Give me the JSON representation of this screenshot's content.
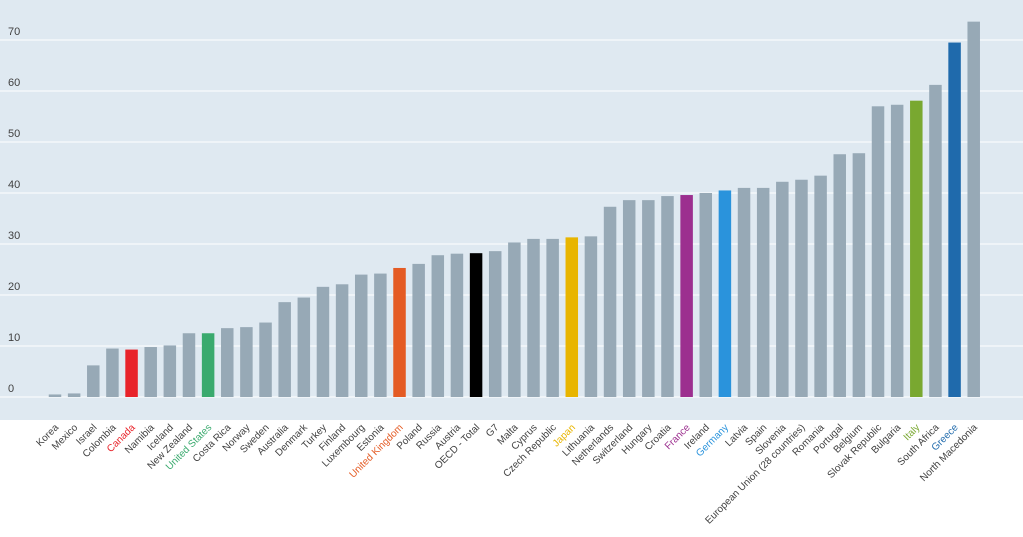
{
  "chart_data": {
    "type": "bar",
    "title": "",
    "xlabel": "",
    "ylabel": "",
    "ylim": [
      -5,
      75
    ],
    "yticks": [
      0,
      10,
      20,
      30,
      40,
      50,
      60,
      70
    ],
    "grid": true,
    "default_color": "#97a9b6",
    "plot_background": "#dfe9f1",
    "gridline_color": "#ffffff",
    "tick_label_color": "#404040",
    "categories": [
      "Korea",
      "Mexico",
      "Israel",
      "Colombia",
      "Canada",
      "Namibia",
      "Iceland",
      "New Zealand",
      "United States",
      "Costa Rica",
      "Norway",
      "Sweden",
      "Australia",
      "Denmark",
      "Turkey",
      "Finland",
      "Luxembourg",
      "Estonia",
      "United Kingdom",
      "Poland",
      "Russia",
      "Austria",
      "OECD - Total",
      "G7",
      "Malta",
      "Cyprus",
      "Czech Republic",
      "Japan",
      "Lithuania",
      "Netherlands",
      "Switzerland",
      "Hungary",
      "Croatia",
      "France",
      "Ireland",
      "Germany",
      "Latvia",
      "Spain",
      "Slovenia",
      "European Union (28 countries)",
      "Romania",
      "Portugal",
      "Belgium",
      "Slovak Republic",
      "Bulgaria",
      "Italy",
      "South Africa",
      "Greece",
      "North Macedonia"
    ],
    "values": [
      0.5,
      0.7,
      6.2,
      9.5,
      9.3,
      9.8,
      10.1,
      12.5,
      12.5,
      13.5,
      13.7,
      14.6,
      18.6,
      19.5,
      21.6,
      22.1,
      24.0,
      24.2,
      25.3,
      26.1,
      27.8,
      28.1,
      28.2,
      28.6,
      30.3,
      31.0,
      31.0,
      31.3,
      31.5,
      37.3,
      38.6,
      38.6,
      39.4,
      39.6,
      40.0,
      40.5,
      41.0,
      41.0,
      42.2,
      42.6,
      43.4,
      47.6,
      47.8,
      57.0,
      57.3,
      58.1,
      61.2,
      69.5,
      73.6
    ],
    "highlights": [
      {
        "category": "Canada",
        "color": "#e8232a"
      },
      {
        "category": "United States",
        "color": "#3aaa6e"
      },
      {
        "category": "United Kingdom",
        "color": "#e45b24"
      },
      {
        "category": "OECD - Total",
        "color": "#000000",
        "label_color": "#404040"
      },
      {
        "category": "Japan",
        "color": "#e8b500"
      },
      {
        "category": "France",
        "color": "#9c2f8f"
      },
      {
        "category": "Germany",
        "color": "#2a93dc"
      },
      {
        "category": "Italy",
        "color": "#79a830"
      },
      {
        "category": "Greece",
        "color": "#1f6aac"
      }
    ]
  }
}
